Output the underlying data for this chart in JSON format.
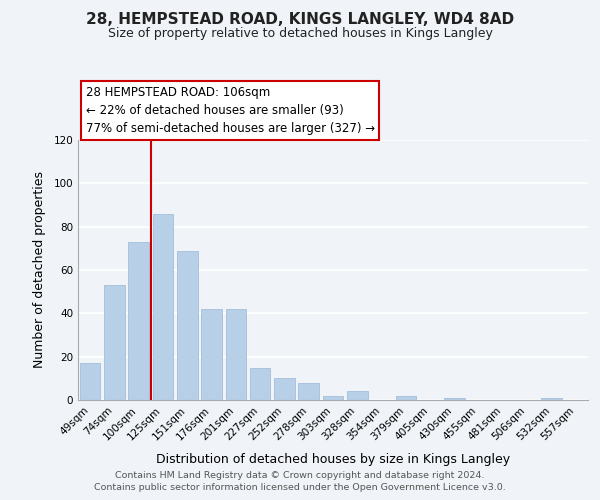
{
  "title": "28, HEMPSTEAD ROAD, KINGS LANGLEY, WD4 8AD",
  "subtitle": "Size of property relative to detached houses in Kings Langley",
  "xlabel": "Distribution of detached houses by size in Kings Langley",
  "ylabel": "Number of detached properties",
  "bar_labels": [
    "49sqm",
    "74sqm",
    "100sqm",
    "125sqm",
    "151sqm",
    "176sqm",
    "201sqm",
    "227sqm",
    "252sqm",
    "278sqm",
    "303sqm",
    "328sqm",
    "354sqm",
    "379sqm",
    "405sqm",
    "430sqm",
    "455sqm",
    "481sqm",
    "506sqm",
    "532sqm",
    "557sqm"
  ],
  "bar_values": [
    17,
    53,
    73,
    86,
    69,
    42,
    42,
    15,
    10,
    8,
    2,
    4,
    0,
    2,
    0,
    1,
    0,
    0,
    0,
    1,
    0
  ],
  "bar_color": "#b8cfe8",
  "bar_edge_color": "#9ab8d8",
  "vline_color": "#cc0000",
  "vline_position": 2.5,
  "ylim": [
    0,
    120
  ],
  "yticks": [
    0,
    20,
    40,
    60,
    80,
    100,
    120
  ],
  "annotation_title": "28 HEMPSTEAD ROAD: 106sqm",
  "annotation_line1": "← 22% of detached houses are smaller (93)",
  "annotation_line2": "77% of semi-detached houses are larger (327) →",
  "footer_line1": "Contains HM Land Registry data © Crown copyright and database right 2024.",
  "footer_line2": "Contains public sector information licensed under the Open Government Licence v3.0.",
  "background_color": "#f0f4f8",
  "grid_color": "#ffffff",
  "title_fontsize": 11,
  "subtitle_fontsize": 9,
  "ylabel_fontsize": 9,
  "xlabel_fontsize": 9,
  "tick_fontsize": 7.5,
  "annotation_fontsize": 8.5,
  "footer_fontsize": 6.8
}
